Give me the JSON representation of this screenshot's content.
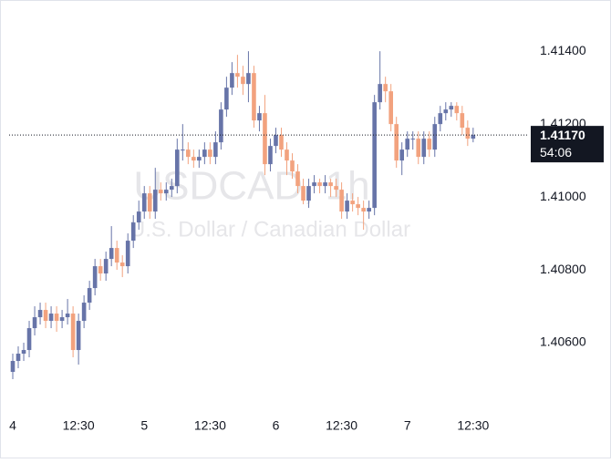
{
  "chart_data": {
    "type": "candlestick",
    "watermark": {
      "symbol": "USDCAD, 1h",
      "description": "U.S. Dollar / Canadian Dollar"
    },
    "categories": [
      "4",
      null,
      null,
      null,
      null,
      null,
      null,
      null,
      null,
      null,
      null,
      null,
      "12:30",
      null,
      null,
      null,
      null,
      null,
      null,
      null,
      null,
      null,
      null,
      null,
      "5",
      null,
      null,
      null,
      null,
      null,
      null,
      null,
      null,
      null,
      null,
      null,
      "12:30",
      null,
      null,
      null,
      null,
      null,
      null,
      null,
      null,
      null,
      null,
      null,
      "6",
      null,
      null,
      null,
      null,
      null,
      null,
      null,
      null,
      null,
      null,
      null,
      "12:30",
      null,
      null,
      null,
      null,
      null,
      null,
      null,
      null,
      null,
      null,
      null,
      "7",
      null,
      null,
      null,
      null,
      null,
      null,
      null,
      null,
      null,
      null,
      null,
      "12:30"
    ],
    "open": [
      1.4052,
      1.4055,
      1.4057,
      1.4058,
      1.4064,
      1.4067,
      1.4069,
      1.4066,
      1.4068,
      1.4066,
      1.4067,
      1.4068,
      1.4058,
      1.4066,
      1.4071,
      1.4075,
      1.4081,
      1.4079,
      1.4083,
      1.4086,
      1.4082,
      1.4081,
      1.4088,
      1.4093,
      1.4096,
      1.4101,
      1.4096,
      1.4102,
      1.4101,
      1.4102,
      1.4103,
      1.4113,
      1.4113,
      1.4111,
      1.411,
      1.4111,
      1.4113,
      1.4111,
      1.4115,
      1.4124,
      1.413,
      1.4134,
      1.4133,
      1.4131,
      1.4134,
      1.4121,
      1.4123,
      1.4109,
      1.4114,
      1.4117,
      1.4113,
      1.411,
      1.4107,
      1.4103,
      1.4099,
      1.4103,
      1.4104,
      1.4103,
      1.4104,
      1.4103,
      1.4102,
      1.4096,
      1.4099,
      1.4098,
      1.4097,
      1.4096,
      1.4097,
      1.4126,
      1.4131,
      1.4129,
      1.412,
      1.411,
      1.4113,
      1.4116,
      1.4116,
      1.4111,
      1.4116,
      1.4113,
      1.412,
      1.4123,
      1.4124,
      1.4125,
      1.4123,
      1.4119,
      1.4116
    ],
    "high": [
      1.4057,
      1.4059,
      1.406,
      1.4066,
      1.407,
      1.4071,
      1.4071,
      1.407,
      1.407,
      1.4069,
      1.4072,
      1.407,
      1.4068,
      1.4073,
      1.4077,
      1.4083,
      1.4083,
      1.4085,
      1.4092,
      1.4088,
      1.4084,
      1.409,
      1.4095,
      1.4099,
      1.4103,
      1.4103,
      1.4108,
      1.4104,
      1.4104,
      1.4105,
      1.4116,
      1.412,
      1.4115,
      1.4113,
      1.4113,
      1.4115,
      1.4115,
      1.4118,
      1.4126,
      1.4133,
      1.4137,
      1.4139,
      1.4136,
      1.414,
      1.4136,
      1.4125,
      1.4128,
      1.4116,
      1.4119,
      1.4119,
      1.4115,
      1.4112,
      1.4109,
      1.4105,
      1.4105,
      1.4106,
      1.4105,
      1.4106,
      1.4105,
      1.4105,
      1.4104,
      1.4101,
      1.4101,
      1.41,
      1.4099,
      1.4099,
      1.4128,
      1.414,
      1.4133,
      1.4131,
      1.4122,
      1.4115,
      1.4118,
      1.4118,
      1.4118,
      1.4118,
      1.4118,
      1.4122,
      1.4125,
      1.4126,
      1.4126,
      1.4126,
      1.4125,
      1.4121,
      1.4119
    ],
    "low": [
      1.405,
      1.4053,
      1.4055,
      1.4056,
      1.4062,
      1.4065,
      1.4064,
      1.4064,
      1.4063,
      1.4064,
      1.4065,
      1.4056,
      1.4054,
      1.4064,
      1.4069,
      1.4073,
      1.4077,
      1.4077,
      1.4081,
      1.408,
      1.4078,
      1.4079,
      1.4086,
      1.4091,
      1.4094,
      1.4094,
      1.4094,
      1.4099,
      1.4099,
      1.41,
      1.4101,
      1.411,
      1.4109,
      1.4108,
      1.4108,
      1.4109,
      1.4109,
      1.4109,
      1.4113,
      1.4122,
      1.4128,
      1.413,
      1.4128,
      1.4126,
      1.4119,
      1.4118,
      1.4106,
      1.4107,
      1.4112,
      1.4111,
      1.4106,
      1.4105,
      1.4101,
      1.4098,
      1.4097,
      1.4101,
      1.4101,
      1.4101,
      1.41,
      1.41,
      1.4094,
      1.4094,
      1.4096,
      1.4095,
      1.4091,
      1.4094,
      1.4095,
      1.4124,
      1.4126,
      1.4118,
      1.4108,
      1.4106,
      1.4111,
      1.4113,
      1.4109,
      1.4109,
      1.4111,
      1.4111,
      1.4118,
      1.4121,
      1.4122,
      1.4121,
      1.4117,
      1.4114,
      1.4115
    ],
    "close": [
      1.4055,
      1.4057,
      1.4058,
      1.4064,
      1.4067,
      1.4069,
      1.4066,
      1.4068,
      1.4066,
      1.4067,
      1.4068,
      1.4058,
      1.4066,
      1.4071,
      1.4075,
      1.4081,
      1.4079,
      1.4083,
      1.4086,
      1.4082,
      1.4081,
      1.4088,
      1.4093,
      1.4096,
      1.4101,
      1.4096,
      1.4102,
      1.4101,
      1.4102,
      1.4103,
      1.4113,
      1.4113,
      1.4111,
      1.411,
      1.4111,
      1.4113,
      1.4111,
      1.4115,
      1.4124,
      1.413,
      1.4134,
      1.4133,
      1.4131,
      1.4134,
      1.4121,
      1.4123,
      1.4109,
      1.4114,
      1.4117,
      1.4113,
      1.411,
      1.4107,
      1.4103,
      1.4099,
      1.4103,
      1.4104,
      1.4103,
      1.4104,
      1.4103,
      1.4102,
      1.4096,
      1.4099,
      1.4098,
      1.4097,
      1.4096,
      1.4097,
      1.4126,
      1.4131,
      1.4129,
      1.412,
      1.411,
      1.4113,
      1.4116,
      1.4116,
      1.4111,
      1.4116,
      1.4113,
      1.412,
      1.4123,
      1.4124,
      1.4125,
      1.4123,
      1.4119,
      1.4116,
      1.4117
    ],
    "up_color": "#6774a8",
    "down_color": "#f2a27e",
    "ylim": [
      1.4041,
      1.41528
    ],
    "yticks": [
      {
        "value": 1.406,
        "label": "1.40600"
      },
      {
        "value": 1.408,
        "label": "1.40800"
      },
      {
        "value": 1.41,
        "label": "1.41000"
      },
      {
        "value": 1.412,
        "label": "1.41200"
      },
      {
        "value": 1.414,
        "label": "1.41400"
      }
    ],
    "price_label": "1.41170",
    "countdown": "54:06"
  }
}
